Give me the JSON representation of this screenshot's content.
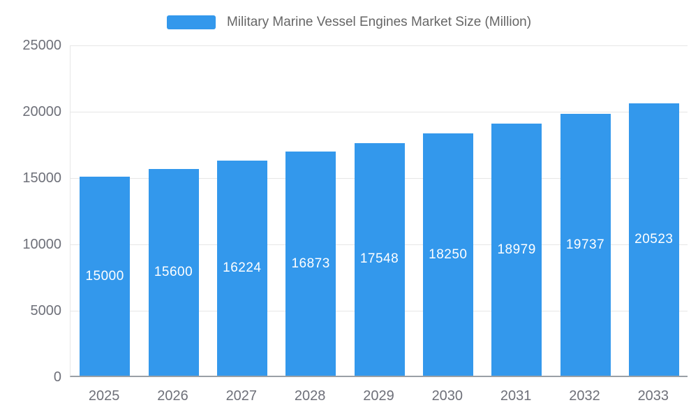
{
  "chart": {
    "title": "Military Marine Vessel Engines Market Size (Million)"
  },
  "colors": {
    "bar": "#3398EC",
    "bar_label": "#ffffff",
    "axis_text": "#6e7079",
    "gridline": "#e6e6e6",
    "axis_line": "#9aa0a6",
    "title_text": "#666666",
    "background": "#ffffff"
  },
  "chart_data": {
    "type": "bar",
    "title": "Military Marine Vessel Engines Market Size (Million)",
    "categories": [
      "2025",
      "2026",
      "2027",
      "2028",
      "2029",
      "2030",
      "2031",
      "2032",
      "2033"
    ],
    "values": [
      15000,
      15600,
      16224,
      16873,
      17548,
      18250,
      18979,
      19737,
      20523
    ],
    "series_name": "Military Marine Vessel Engines Market Size (Million)",
    "xlabel": "",
    "ylabel": "",
    "ylim": [
      0,
      25000
    ],
    "yticks": [
      0,
      5000,
      10000,
      15000,
      20000,
      25000
    ],
    "grid": true,
    "legend_position": "top",
    "bar_labels_inside": true
  }
}
